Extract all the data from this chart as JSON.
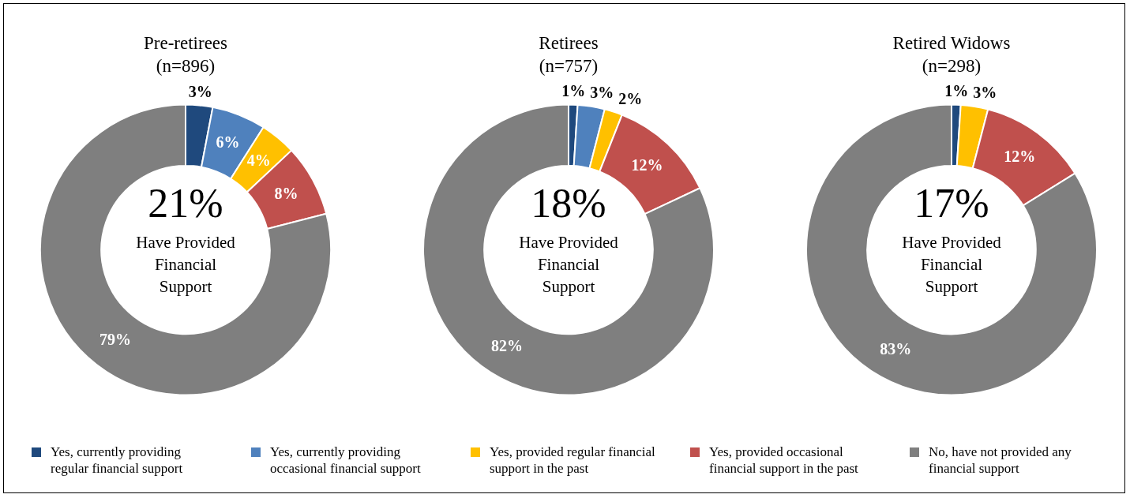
{
  "chart_data": [
    {
      "type": "donut",
      "title": "Pre-retirees",
      "subtitle": "(n=896)",
      "categories": [
        "Yes, currently providing regular financial support",
        "Yes, currently providing occasional financial support",
        "Yes, provided regular financial support in the past",
        "Yes, provided occasional financial support in the past",
        "No, have not provided any financial support"
      ],
      "values": [
        3,
        6,
        4,
        8,
        79
      ],
      "colors": [
        "#1f497d",
        "#4f81bd",
        "#ffc000",
        "#c0504d",
        "#7f7f7f"
      ],
      "value_labels": [
        "3%",
        "6%",
        "4%",
        "8%",
        "79%"
      ],
      "annotations": [
        "21%",
        "Have Provided Financial Support"
      ],
      "legend": "bottom"
    },
    {
      "type": "donut",
      "title": "Retirees",
      "subtitle": "(n=757)",
      "values": [
        1,
        3,
        2,
        12,
        82
      ],
      "colors": [
        "#1f497d",
        "#4f81bd",
        "#ffc000",
        "#c0504d",
        "#7f7f7f"
      ],
      "value_labels": [
        "1%",
        "3%",
        "2%",
        "12%",
        "82%"
      ],
      "annotations": [
        "18%",
        "Have Provided Financial Support"
      ]
    },
    {
      "type": "donut",
      "title": "Retired Widows",
      "subtitle": "(n=298)",
      "values": [
        1,
        0,
        3,
        12,
        83
      ],
      "colors": [
        "#1f497d",
        "#4f81bd",
        "#ffc000",
        "#c0504d",
        "#7f7f7f"
      ],
      "value_labels": [
        "1%",
        null,
        "3%",
        "12%",
        "83%"
      ],
      "annotations": [
        "17%",
        "Have Provided Financial Support"
      ]
    }
  ]
}
